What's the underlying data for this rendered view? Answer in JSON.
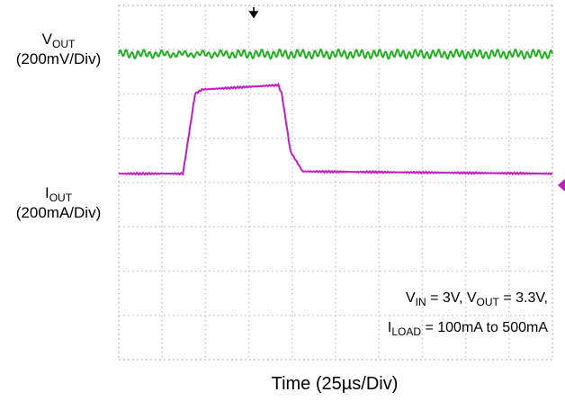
{
  "chart_data": {
    "type": "line",
    "xlabel": "Time (25µs/Div)",
    "time_div_us": 25,
    "divisions": {
      "x": 10,
      "y": 8
    },
    "grid": true,
    "channels": [
      {
        "id": "vout",
        "label_main": "V",
        "label_sub": "OUT",
        "scale": "(200mV/Div)",
        "color": "#22b022",
        "baseline_div": 6.9,
        "ripple_pp_div": 0.15,
        "ripple_period_us": 3.4
      },
      {
        "id": "iout",
        "label_main": "I",
        "label_sub": "OUT",
        "scale": "(200mA/Div)",
        "color": "#c020c0",
        "marker_color": "#c020c0",
        "series": [
          {
            "t_us": 0,
            "level_div": 4.2
          },
          {
            "t_us": 37,
            "level_div": 4.2
          },
          {
            "t_us": 44,
            "level_div": 6.0
          },
          {
            "t_us": 48,
            "level_div": 6.1
          },
          {
            "t_us": 92,
            "level_div": 6.2
          },
          {
            "t_us": 94,
            "level_div": 6.0
          },
          {
            "t_us": 99,
            "level_div": 4.7
          },
          {
            "t_us": 106,
            "level_div": 4.25
          },
          {
            "t_us": 250,
            "level_div": 4.2
          }
        ]
      }
    ],
    "annotations": {
      "line1": {
        "vin_main": "V",
        "vin_sub": "IN",
        "vin_val": " = 3V, ",
        "vout_main": "V",
        "vout_sub": "OUT",
        "vout_val": " = 3.3V,"
      },
      "line2": {
        "iload_main": "I",
        "iload_sub": "LOAD",
        "iload_val": " = 100mA to 500mA"
      }
    },
    "trigger_marker_color": "#000000"
  }
}
